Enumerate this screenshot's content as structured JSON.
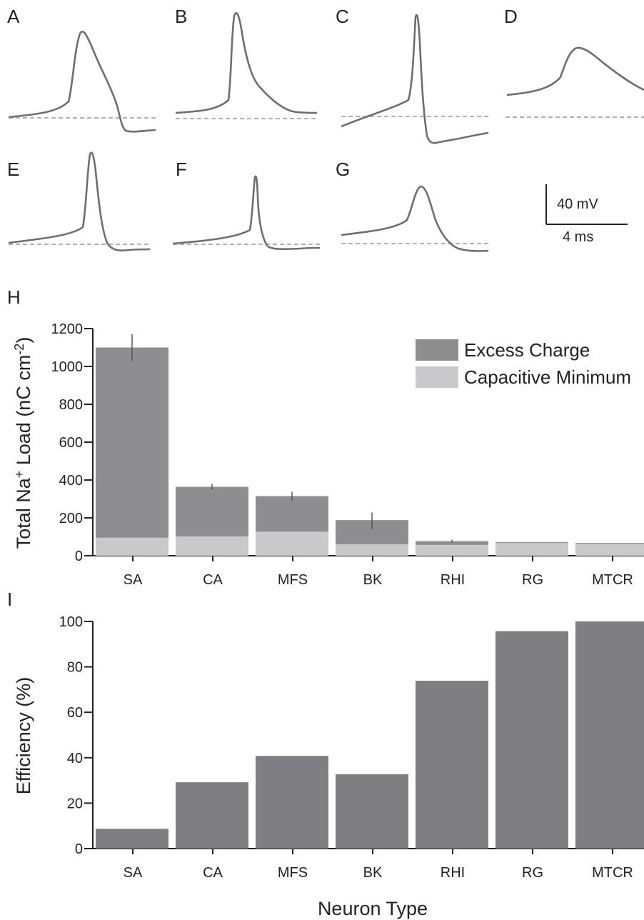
{
  "panels": {
    "traces": [
      {
        "letter": "A"
      },
      {
        "letter": "B"
      },
      {
        "letter": "C"
      },
      {
        "letter": "D"
      },
      {
        "letter": "E"
      },
      {
        "letter": "F"
      },
      {
        "letter": "G"
      }
    ],
    "scale_bar": {
      "voltage_label": "40 mV",
      "time_label": "4 ms"
    }
  },
  "colors": {
    "excess": "#8e8e91",
    "capacitive": "#c9c9cb",
    "efficiency": "#7f7f83",
    "trace": "#6e6e6e",
    "baseline": "#b0b0b0"
  },
  "chart_data": [
    {
      "panel": "H",
      "type": "bar",
      "stacked": true,
      "categories": [
        "SA",
        "CA",
        "MFS",
        "BK",
        "RHI",
        "RG",
        "MTCR"
      ],
      "series": [
        {
          "name": "Capacitive Minimum",
          "values": [
            95,
            102,
            127,
            60,
            57,
            70,
            65
          ]
        },
        {
          "name": "Excess Charge",
          "values": [
            1005,
            262,
            188,
            128,
            20,
            0,
            0
          ]
        }
      ],
      "totals": [
        1100,
        364,
        315,
        188,
        77,
        70,
        65
      ],
      "error_bars": [
        [
          1030,
          1170
        ],
        [
          350,
          380
        ],
        [
          290,
          338
        ],
        [
          140,
          228
        ],
        [
          70,
          85
        ],
        null,
        null
      ],
      "ylabel": "Total Na+ Load (nC cm-2)",
      "ylabel_parts": {
        "main": "Total Na",
        "sup1": "+",
        "mid": " Load (nC cm",
        "sup2": "-2",
        "end": ")"
      },
      "ylim": [
        0,
        1200
      ],
      "yticks": [
        0,
        200,
        400,
        600,
        800,
        1000,
        1200
      ],
      "legend_position": "top-right",
      "grid": false
    },
    {
      "panel": "I",
      "type": "bar",
      "categories": [
        "SA",
        "CA",
        "MFS",
        "BK",
        "RHI",
        "RG",
        "MTCR"
      ],
      "values": [
        8.7,
        29.2,
        40.8,
        32.7,
        73.9,
        95.7,
        100
      ],
      "ylabel": "Efficiency (%)",
      "xlabel": "Neuron Type",
      "ylim": [
        0,
        100
      ],
      "yticks": [
        0,
        20,
        40,
        60,
        80,
        100
      ],
      "grid": false
    }
  ]
}
